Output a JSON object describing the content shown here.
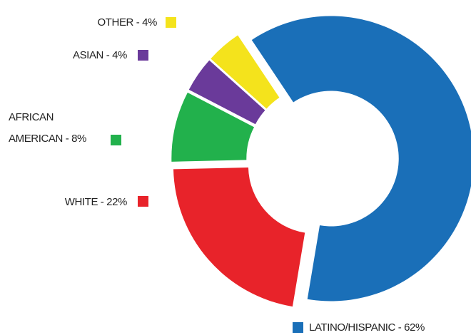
{
  "chart_data": {
    "type": "donut",
    "categories": [
      "LATINO/HISPANIC - 62%",
      "WHITE - 22%",
      "AFRICAN AMERICAN - 8%",
      "ASIAN  - 4%",
      "OTHER - 4%"
    ],
    "values": [
      62,
      22,
      8,
      4,
      4
    ],
    "colors": [
      "#1a6fb8",
      "#e8232a",
      "#22b14c",
      "#6a3a9a",
      "#f4e31c"
    ]
  }
}
